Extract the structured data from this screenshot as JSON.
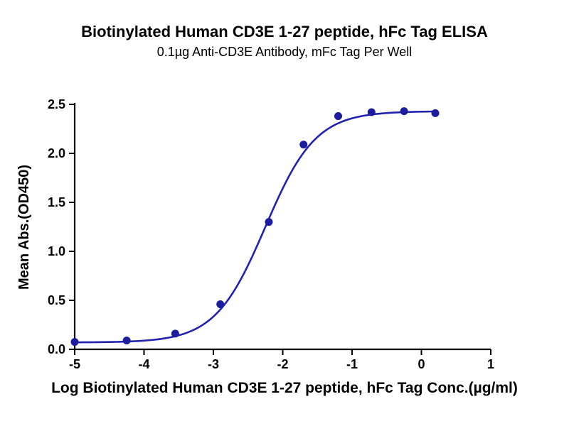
{
  "header": {
    "title": "Biotinylated Human CD3E 1-27 peptide, hFc Tag ELISA",
    "subtitle": "0.1µg Anti-CD3E Antibody, mFc Tag Per Well"
  },
  "chart_data": {
    "type": "scatter",
    "title": "Biotinylated Human CD3E 1-27 peptide, hFc Tag ELISA",
    "subtitle": "0.1µg Anti-CD3E Antibody, mFc Tag Per Well",
    "xlabel": "Log Biotinylated Human CD3E 1-27 peptide, hFc Tag Conc.(µg/ml)",
    "ylabel": "Mean Abs.(OD450)",
    "xlim": [
      -5,
      1
    ],
    "ylim": [
      0,
      2.5
    ],
    "xticks": [
      -5,
      -4,
      -3,
      -2,
      -1,
      0,
      1
    ],
    "xtick_labels": [
      "-5",
      "-4",
      "-3",
      "-2",
      "-1",
      "0",
      "1"
    ],
    "yticks": [
      0,
      0.5,
      1.0,
      1.5,
      2.0,
      2.5
    ],
    "ytick_labels": [
      "0.0",
      "0.5",
      "1.0",
      "1.5",
      "2.0",
      "2.5"
    ],
    "grid": false,
    "legend": "none",
    "points": [
      [
        -5.0,
        0.075
      ],
      [
        -4.25,
        0.09
      ],
      [
        -3.55,
        0.16
      ],
      [
        -2.9,
        0.46
      ],
      [
        -2.2,
        1.3
      ],
      [
        -1.7,
        2.09
      ],
      [
        -1.2,
        2.38
      ],
      [
        -0.72,
        2.42
      ],
      [
        -0.25,
        2.43
      ],
      [
        0.2,
        2.41
      ]
    ],
    "fit_curve": {
      "model": "4PL",
      "bottom": 0.07,
      "top": 2.43,
      "log_ec50": -2.25,
      "hill": 1.2,
      "x_start": -5.0,
      "x_end": 0.2
    },
    "colors": {
      "curve": "#2222b2",
      "point": "#1c1c9e",
      "axis": "#000000",
      "text": "#000000"
    }
  }
}
